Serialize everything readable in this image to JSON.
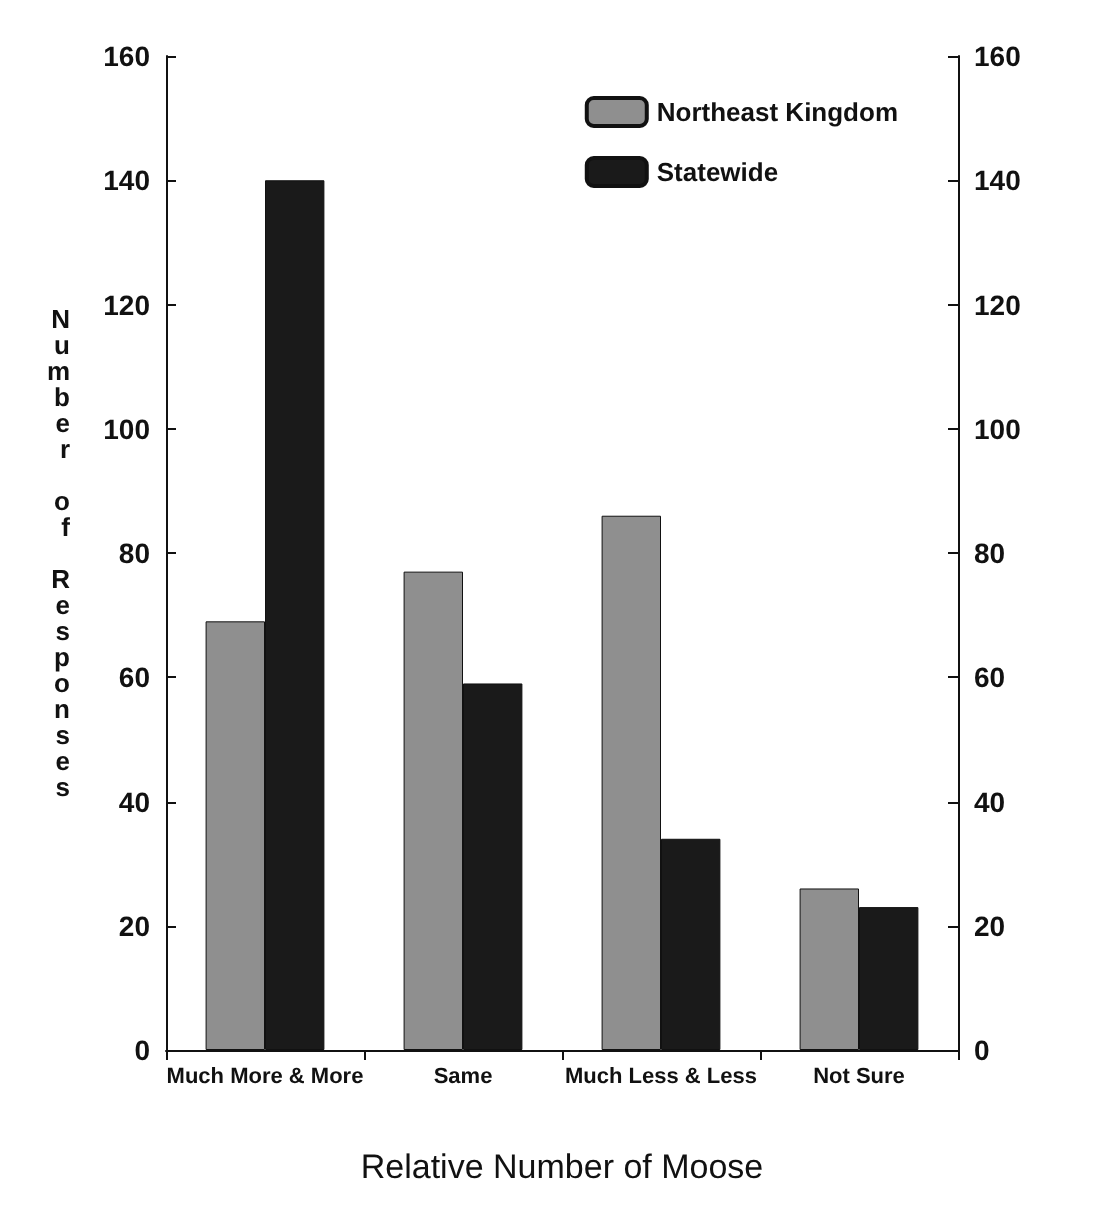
{
  "chart_data": {
    "type": "bar",
    "xlabel": "Relative Number of Moose",
    "ylabel": "Number of Responses",
    "categories": [
      "Much More & More",
      "Same",
      "Much Less & Less",
      "Not Sure"
    ],
    "series": [
      {
        "name": "Northeast Kingdom",
        "color": "#8f8f8f",
        "values": [
          69,
          77,
          86,
          26
        ]
      },
      {
        "name": "Statewide",
        "color": "#1a1a1a",
        "values": [
          140,
          59,
          34,
          23
        ]
      }
    ],
    "ylim": [
      0,
      160
    ],
    "yticks": [
      0,
      20,
      40,
      60,
      80,
      100,
      120,
      140,
      160
    ],
    "y2lim": [
      0,
      160
    ],
    "y2ticks": [
      0,
      20,
      40,
      60,
      80,
      100,
      120,
      140,
      160
    ],
    "legend": "top right",
    "grid": false
  }
}
